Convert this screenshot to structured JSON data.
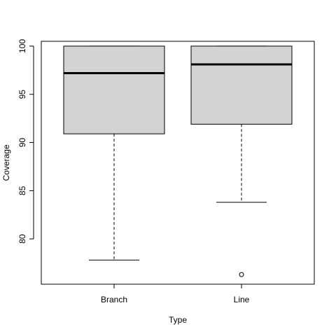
{
  "chart_data": {
    "type": "boxplot",
    "title": "",
    "xlabel": "Type",
    "ylabel": "Coverage",
    "ylim": [
      75.3,
      100.5
    ],
    "yticks": [
      80,
      85,
      90,
      95,
      100
    ],
    "categories": [
      "Branch",
      "Line"
    ],
    "boxes": [
      {
        "category": "Branch",
        "whisker_low": 77.8,
        "q1": 90.9,
        "median": 97.2,
        "q3": 100,
        "whisker_high": 100,
        "outliers": []
      },
      {
        "category": "Line",
        "whisker_low": 83.8,
        "q1": 91.9,
        "median": 98.1,
        "q3": 100,
        "whisker_high": 100,
        "outliers": [
          76.3
        ]
      }
    ],
    "box_fill": "#d3d3d3",
    "line_color": "#000000",
    "grid": false,
    "legend": "none"
  }
}
